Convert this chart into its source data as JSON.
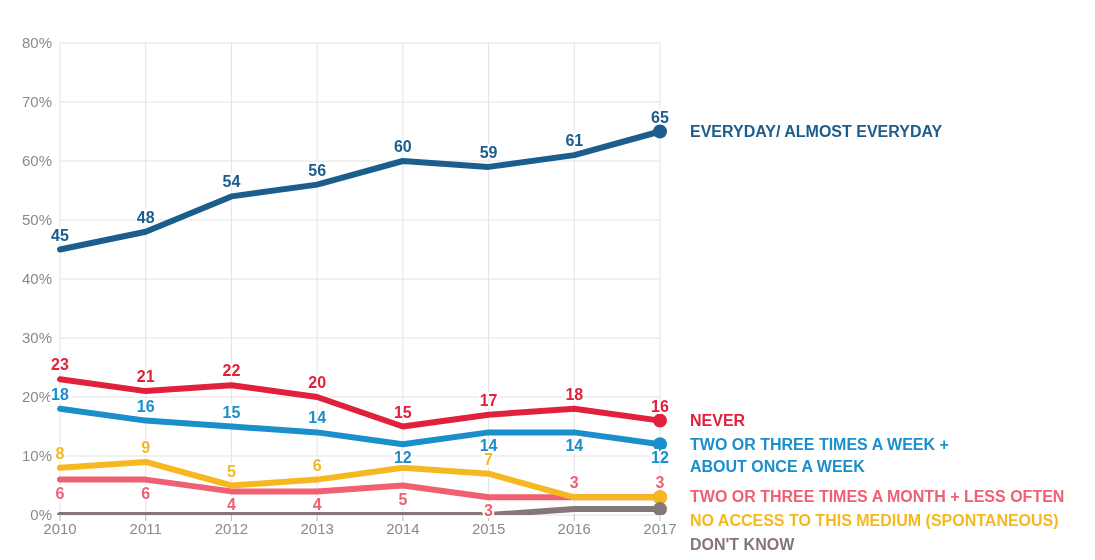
{
  "chart_data": {
    "type": "line",
    "categories": [
      "2010",
      "2011",
      "2012",
      "2013",
      "2014",
      "2015",
      "2016",
      "2017"
    ],
    "ylim": [
      0,
      80
    ],
    "yticks": [
      {
        "value": 0,
        "label": "0%"
      },
      {
        "value": 10,
        "label": "10%"
      },
      {
        "value": 20,
        "label": "20%"
      },
      {
        "value": 30,
        "label": "30%"
      },
      {
        "value": 40,
        "label": "40%"
      },
      {
        "value": 50,
        "label": "50%"
      },
      {
        "value": 60,
        "label": "60%"
      },
      {
        "value": 70,
        "label": "70%"
      },
      {
        "value": 80,
        "label": "80%"
      }
    ],
    "grid": true,
    "legend": "right",
    "line_style": "solid",
    "series": [
      {
        "name": "EVERYDAY/ ALMOST EVERYDAY",
        "color": "#1b5d8c",
        "values": [
          45,
          48,
          54,
          56,
          60,
          59,
          61,
          65
        ],
        "value_labels": [
          "45",
          "48",
          "54",
          "56",
          "60",
          "59",
          "61",
          "65"
        ]
      },
      {
        "name": "NEVER",
        "color": "#e0213b",
        "values": [
          23,
          21,
          22,
          20,
          15,
          17,
          18,
          16
        ],
        "value_labels": [
          "23",
          "21",
          "22",
          "20",
          "15",
          "17",
          "18",
          "16"
        ]
      },
      {
        "name": "TWO OR THREE TIMES A WEEK +\nABOUT ONCE A WEEK",
        "color": "#1a8fcc",
        "values": [
          18,
          16,
          15,
          14,
          12,
          14,
          14,
          12
        ],
        "value_labels": [
          "18",
          "16",
          "15",
          "14",
          "12",
          "14",
          "14",
          "12"
        ]
      },
      {
        "name": "TWO OR THREE TIMES A MONTH + LESS OFTEN",
        "color": "#ef6172",
        "values": [
          6,
          6,
          4,
          4,
          5,
          3,
          3,
          3
        ],
        "value_labels": [
          "6",
          "6",
          "4",
          "4",
          "5",
          "3",
          "3",
          "3"
        ]
      },
      {
        "name": "NO ACCESS TO THIS MEDIUM (SPONTANEOUS)",
        "color": "#f5b820",
        "values": [
          8,
          9,
          5,
          6,
          8,
          7,
          3,
          3
        ],
        "value_labels": [
          "8",
          "9",
          "5",
          "6",
          null,
          "7",
          null,
          null
        ]
      },
      {
        "name": "DON'T KNOW",
        "color": "#857677",
        "values": [
          0,
          0,
          0,
          0,
          0,
          0,
          1,
          1
        ],
        "value_labels": [
          null,
          null,
          null,
          null,
          null,
          null,
          null,
          null
        ]
      }
    ]
  }
}
